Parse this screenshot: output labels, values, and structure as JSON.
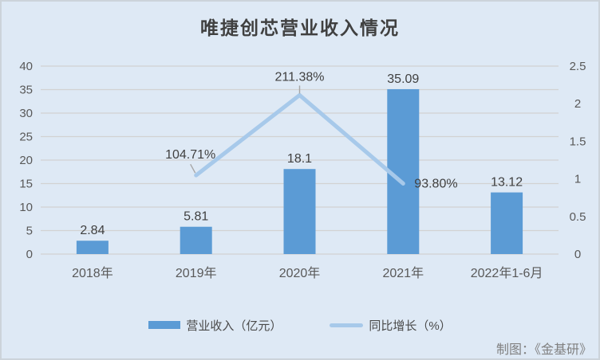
{
  "title": "唯捷创芯营业收入情况",
  "credit": "制图：《金基研》",
  "legend": {
    "bar_label": "营业收入（亿元）",
    "line_label": "同比增长（%）"
  },
  "colors": {
    "background": "#dee9f5",
    "border": "#ccd3da",
    "bar": "#5b9bd5",
    "line": "#a7c9ea",
    "grid": "#d2d2d2",
    "title_text": "#404040",
    "axis_text": "#595959",
    "label_text": "#404040",
    "leader": "#a6a6a6",
    "credit_text": "#808080"
  },
  "chart_data": {
    "type": "bar+line",
    "title": "唯捷创芯营业收入情况",
    "categories": [
      "2018年",
      "2019年",
      "2020年",
      "2021年",
      "2022年1-6月"
    ],
    "series": [
      {
        "name": "营业收入（亿元）",
        "type": "bar",
        "axis": "left",
        "values": [
          2.84,
          5.81,
          18.1,
          35.09,
          13.12
        ],
        "labels": [
          "2.84",
          "5.81",
          "18.1",
          "35.09",
          "13.12"
        ]
      },
      {
        "name": "同比增长（%）",
        "type": "line",
        "axis": "right",
        "values": [
          null,
          1.0471,
          2.1138,
          0.938,
          null
        ],
        "labels": [
          null,
          "104.71%",
          "211.38%",
          "93.80%",
          null
        ],
        "label_placement": [
          null,
          "above-left",
          "above",
          "right",
          null
        ]
      }
    ],
    "left_axis": {
      "min": 0,
      "max": 40,
      "step": 5,
      "ticks": [
        "0",
        "5",
        "10",
        "15",
        "20",
        "25",
        "30",
        "35",
        "40"
      ]
    },
    "right_axis": {
      "min": 0,
      "max": 2.5,
      "step": 0.5,
      "ticks": [
        "0",
        "0.5",
        "1",
        "1.5",
        "2",
        "2.5"
      ]
    },
    "grid": true,
    "legend_position": "bottom"
  }
}
